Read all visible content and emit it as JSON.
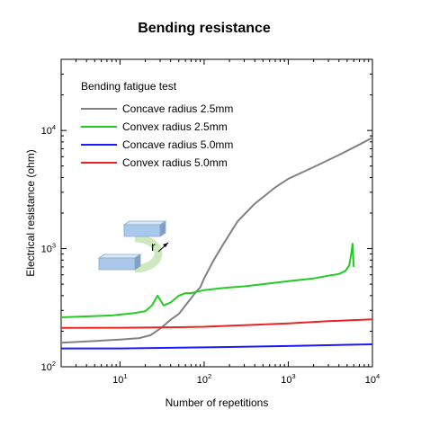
{
  "chart_data": {
    "type": "line",
    "title": "Bending resistance",
    "xlabel": "Number of repetitions",
    "ylabel": "Electrical resistance (ohm)",
    "x_scale": "log",
    "y_scale": "log",
    "xlim": [
      2,
      10000
    ],
    "ylim": [
      100,
      40000
    ],
    "x_ticks": [
      {
        "base": "10",
        "exp": "1",
        "value": 10
      },
      {
        "base": "10",
        "exp": "2",
        "value": 100
      },
      {
        "base": "10",
        "exp": "3",
        "value": 1000
      },
      {
        "base": "10",
        "exp": "4",
        "value": 10000
      }
    ],
    "y_ticks": [
      {
        "base": "10",
        "exp": "2",
        "value": 100
      },
      {
        "base": "10",
        "exp": "3",
        "value": 1000
      },
      {
        "base": "10",
        "exp": "4",
        "value": 10000
      }
    ],
    "grid": false,
    "legend": {
      "title": "Bending fatigue test",
      "position": "top-left"
    },
    "inset_label": "r",
    "series": [
      {
        "name": "Concave radius 2.5mm",
        "color": "#808080",
        "points": [
          [
            2,
            160
          ],
          [
            5,
            165
          ],
          [
            10,
            170
          ],
          [
            17,
            175
          ],
          [
            23,
            185
          ],
          [
            30,
            210
          ],
          [
            40,
            250
          ],
          [
            50,
            280
          ],
          [
            60,
            330
          ],
          [
            70,
            380
          ],
          [
            80,
            430
          ],
          [
            90,
            470
          ],
          [
            100,
            560
          ],
          [
            130,
            800
          ],
          [
            170,
            1100
          ],
          [
            250,
            1700
          ],
          [
            400,
            2400
          ],
          [
            700,
            3300
          ],
          [
            1000,
            3900
          ],
          [
            2000,
            4900
          ],
          [
            4000,
            6200
          ],
          [
            7000,
            7600
          ],
          [
            10000,
            8700
          ]
        ]
      },
      {
        "name": "Convex radius 2.5mm",
        "color": "#22cc22",
        "points": [
          [
            2,
            262
          ],
          [
            8,
            272
          ],
          [
            15,
            285
          ],
          [
            20,
            295
          ],
          [
            24,
            330
          ],
          [
            28,
            400
          ],
          [
            33,
            330
          ],
          [
            40,
            350
          ],
          [
            50,
            400
          ],
          [
            60,
            420
          ],
          [
            70,
            420
          ],
          [
            80,
            430
          ],
          [
            100,
            445
          ],
          [
            150,
            460
          ],
          [
            200,
            470
          ],
          [
            300,
            480
          ],
          [
            500,
            500
          ],
          [
            800,
            520
          ],
          [
            1000,
            530
          ],
          [
            2000,
            560
          ],
          [
            3000,
            590
          ],
          [
            4000,
            610
          ],
          [
            4800,
            650
          ],
          [
            5300,
            720
          ],
          [
            5600,
            900
          ],
          [
            5800,
            1100
          ],
          [
            6000,
            700
          ]
        ]
      },
      {
        "name": "Concave radius 5.0mm",
        "color": "#1a1aff",
        "points": [
          [
            2,
            143
          ],
          [
            10,
            143
          ],
          [
            100,
            146
          ],
          [
            1000,
            150
          ],
          [
            10000,
            155
          ]
        ]
      },
      {
        "name": "Convex radius 5.0mm",
        "color": "#ee2222",
        "points": [
          [
            2,
            213
          ],
          [
            10,
            214
          ],
          [
            50,
            216
          ],
          [
            100,
            218
          ],
          [
            300,
            225
          ],
          [
            1000,
            233
          ],
          [
            3000,
            243
          ],
          [
            10000,
            252
          ]
        ]
      }
    ]
  }
}
